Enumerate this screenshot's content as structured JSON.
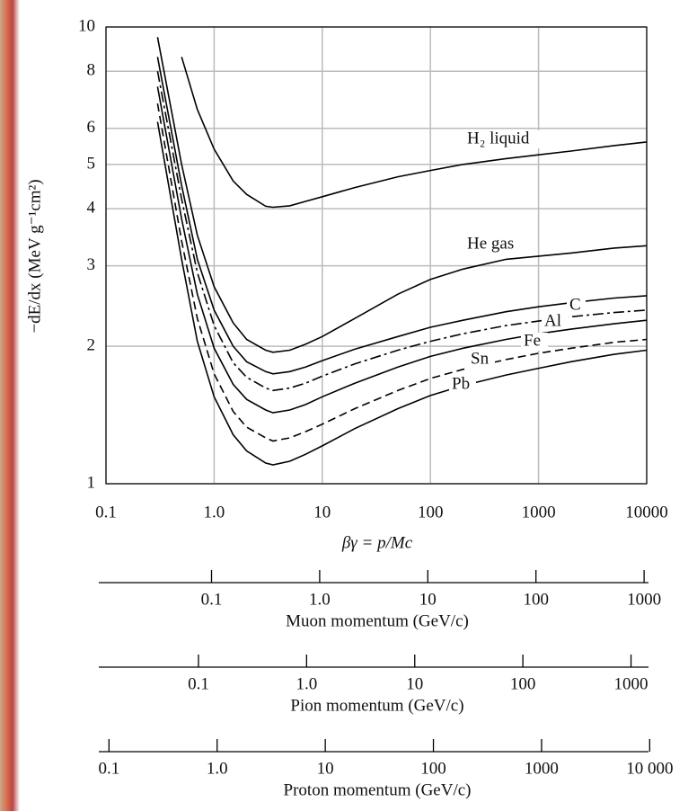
{
  "chart_data": {
    "type": "line",
    "xlabel": "βγ = p/Mc",
    "ylabel": "−dE/dx (MeV g⁻¹cm²)",
    "log_x": true,
    "log_y": true,
    "grid": true,
    "xlim": [
      0.1,
      10000
    ],
    "ylim": [
      1,
      10
    ],
    "xticks": [
      0.1,
      {
        "value": 1,
        "label": "1.0"
      },
      10,
      100,
      1000,
      10000
    ],
    "yticks": [
      1,
      2,
      3,
      4,
      5,
      6,
      8,
      10
    ],
    "x": [
      0.3,
      0.5,
      0.7,
      1,
      1.5,
      2,
      3,
      3.5,
      5,
      7,
      10,
      20,
      50,
      100,
      200,
      500,
      1000,
      2000,
      5000,
      10000
    ],
    "series": [
      {
        "name": "H₂ liquid",
        "color": "#000000",
        "dash": "solid",
        "values": [
          null,
          8.6,
          6.6,
          5.4,
          4.6,
          4.3,
          4.05,
          4.03,
          4.06,
          4.15,
          4.25,
          4.45,
          4.7,
          4.85,
          5.0,
          5.15,
          5.25,
          5.35,
          5.5,
          5.6
        ]
      },
      {
        "name": "He gas",
        "color": "#000000",
        "dash": "solid",
        "values": [
          9.5,
          5.0,
          3.5,
          2.7,
          2.25,
          2.07,
          1.96,
          1.94,
          1.96,
          2.02,
          2.1,
          2.3,
          2.6,
          2.8,
          2.95,
          3.1,
          3.15,
          3.2,
          3.28,
          3.32
        ]
      },
      {
        "name": "C",
        "color": "#000000",
        "dash": "solid",
        "values": [
          8.6,
          4.5,
          3.1,
          2.4,
          2.0,
          1.85,
          1.76,
          1.74,
          1.76,
          1.8,
          1.86,
          1.97,
          2.1,
          2.2,
          2.28,
          2.38,
          2.44,
          2.49,
          2.55,
          2.58
        ]
      },
      {
        "name": "Al",
        "color": "#000000",
        "dash": "dashdot",
        "values": [
          8.0,
          4.2,
          2.9,
          2.22,
          1.84,
          1.71,
          1.62,
          1.6,
          1.62,
          1.66,
          1.72,
          1.83,
          1.96,
          2.05,
          2.13,
          2.22,
          2.27,
          2.32,
          2.37,
          2.4
        ]
      },
      {
        "name": "Fe",
        "color": "#000000",
        "dash": "solid",
        "values": [
          7.4,
          3.8,
          2.6,
          1.98,
          1.65,
          1.53,
          1.45,
          1.43,
          1.45,
          1.49,
          1.55,
          1.66,
          1.8,
          1.9,
          1.98,
          2.07,
          2.13,
          2.18,
          2.24,
          2.28
        ]
      },
      {
        "name": "Sn",
        "color": "#000000",
        "dash": "dashed",
        "values": [
          6.8,
          3.4,
          2.3,
          1.74,
          1.44,
          1.33,
          1.26,
          1.24,
          1.26,
          1.3,
          1.35,
          1.46,
          1.6,
          1.7,
          1.78,
          1.87,
          1.93,
          1.98,
          2.04,
          2.07
        ]
      },
      {
        "name": "Pb",
        "color": "#000000",
        "dash": "solid",
        "values": [
          6.2,
          3.1,
          2.05,
          1.55,
          1.28,
          1.18,
          1.11,
          1.1,
          1.12,
          1.16,
          1.21,
          1.32,
          1.46,
          1.56,
          1.64,
          1.73,
          1.79,
          1.85,
          1.92,
          1.96
        ]
      }
    ],
    "momentum_axes": [
      {
        "xlabel": "Muon momentum (GeV/c)",
        "xlim": [
          0.01057,
          1057
        ],
        "xticks": [
          0.1,
          {
            "value": 1,
            "label": "1.0"
          },
          10,
          100,
          1000
        ]
      },
      {
        "xlabel": "Pion momentum (GeV/c)",
        "xlim": [
          0.01396,
          1396
        ],
        "xticks": [
          0.1,
          {
            "value": 1,
            "label": "1.0"
          },
          10,
          100,
          1000
        ]
      },
      {
        "xlabel": "Proton momentum (GeV/c)",
        "xlim": [
          0.0938,
          9383
        ],
        "xticks": [
          0.1,
          {
            "value": 1,
            "label": "1.0"
          },
          10,
          100,
          1000,
          {
            "value": 10000,
            "label": "10 000"
          }
        ]
      }
    ]
  }
}
